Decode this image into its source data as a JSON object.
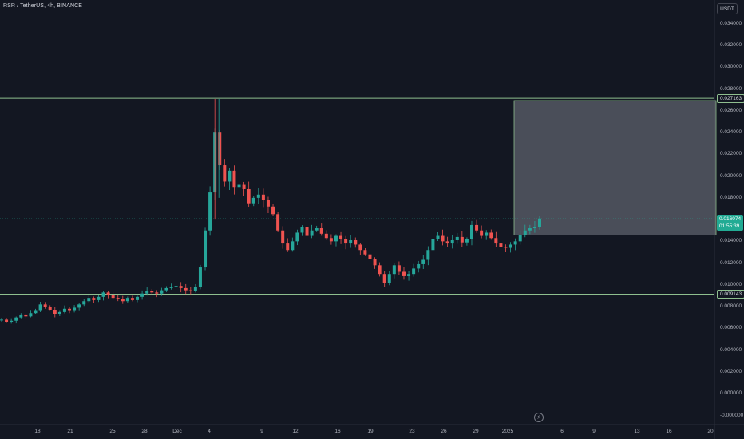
{
  "header": {
    "title": "RSR / TetherUS, 4h, BINANCE",
    "currency_label": "USDT"
  },
  "chart_data": {
    "type": "candlestick",
    "symbol": "RSR / TetherUS",
    "interval": "4h",
    "exchange": "BINANCE",
    "y_ticks": [
      "0.034000",
      "0.032000",
      "0.030000",
      "0.028000",
      "0.026000",
      "0.024000",
      "0.022000",
      "0.020000",
      "0.018000",
      "0.016000",
      "0.014000",
      "0.012000",
      "0.010000",
      "0.008000",
      "0.006000",
      "0.004000",
      "0.002000",
      "0.000000",
      "-0.000000"
    ],
    "y_range": [
      -0.0,
      0.035
    ],
    "x_ticks": [
      "18",
      "21",
      "25",
      "28",
      "Dec",
      "4",
      "9",
      "12",
      "16",
      "19",
      "23",
      "26",
      "29",
      "2025",
      "6",
      "9",
      "13",
      "16",
      "20"
    ],
    "horizontal_lines": [
      {
        "label": "0.027163",
        "value": 0.027163,
        "color": "#8fbf8f"
      },
      {
        "label": "0.009143",
        "value": 0.009143,
        "color": "#8fbf8f"
      }
    ],
    "current_price": {
      "label": "0.016074",
      "countdown": "01:55:39",
      "value": 0.016074
    },
    "highlight_box": {
      "top": 0.02695,
      "bottom": 0.01458,
      "color": "#787b86"
    },
    "colors": {
      "up": "#26a69a",
      "down": "#ef5350",
      "background": "#131722"
    },
    "close_path": [
      0.0068,
      0.0066,
      0.0067,
      0.007,
      0.0072,
      0.0071,
      0.0074,
      0.0076,
      0.0082,
      0.008,
      0.0077,
      0.0073,
      0.0075,
      0.0078,
      0.0076,
      0.0079,
      0.0082,
      0.0085,
      0.0088,
      0.0086,
      0.0089,
      0.0093,
      0.0091,
      0.0088,
      0.0087,
      0.0085,
      0.0088,
      0.0086,
      0.0089,
      0.0092,
      0.0094,
      0.0093,
      0.0092,
      0.0095,
      0.0097,
      0.0098,
      0.0099,
      0.0097,
      0.0095,
      0.0094,
      0.0098,
      0.0116,
      0.015,
      0.0185,
      0.024,
      0.021,
      0.0195,
      0.0205,
      0.019,
      0.0192,
      0.0188,
      0.0175,
      0.018,
      0.0183,
      0.0178,
      0.0172,
      0.0165,
      0.015,
      0.0138,
      0.0132,
      0.014,
      0.0148,
      0.0153,
      0.0145,
      0.015,
      0.0152,
      0.0147,
      0.0143,
      0.014,
      0.0145,
      0.0142,
      0.0138,
      0.0141,
      0.0137,
      0.0132,
      0.0128,
      0.0124,
      0.0118,
      0.011,
      0.0102,
      0.011,
      0.0118,
      0.0112,
      0.0108,
      0.011,
      0.0115,
      0.0119,
      0.0123,
      0.0132,
      0.0142,
      0.0145,
      0.014,
      0.0138,
      0.0141,
      0.0144,
      0.0139,
      0.0142,
      0.0155,
      0.015,
      0.0145,
      0.0148,
      0.0143,
      0.0138,
      0.0135,
      0.0134,
      0.0137,
      0.014,
      0.0146,
      0.015,
      0.0152,
      0.0153,
      0.0161
    ]
  }
}
